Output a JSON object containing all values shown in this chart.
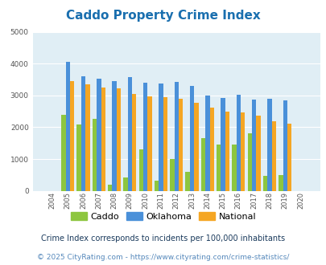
{
  "title": "Caddo Property Crime Index",
  "title_color": "#1a6faf",
  "years": [
    "2004",
    "2005",
    "2006",
    "2007",
    "2008",
    "2009",
    "2010",
    "2011",
    "2012",
    "2013",
    "2014",
    "2015",
    "2016",
    "2017",
    "2018",
    "2019",
    "2020"
  ],
  "caddo": [
    0,
    2400,
    2080,
    2270,
    200,
    420,
    1310,
    320,
    1000,
    600,
    1650,
    1450,
    1450,
    1800,
    480,
    490,
    0
  ],
  "oklahoma": [
    0,
    4050,
    3600,
    3530,
    3440,
    3570,
    3400,
    3370,
    3420,
    3290,
    3000,
    2920,
    3010,
    2880,
    2890,
    2850,
    0
  ],
  "national": [
    0,
    3450,
    3350,
    3260,
    3210,
    3040,
    2960,
    2940,
    2890,
    2760,
    2620,
    2500,
    2460,
    2360,
    2190,
    2120,
    0
  ],
  "caddo_color": "#8dc63f",
  "oklahoma_color": "#4a90d9",
  "national_color": "#f5a623",
  "plot_bg": "#e0eef5",
  "ylim": [
    0,
    5000
  ],
  "yticks": [
    0,
    1000,
    2000,
    3000,
    4000,
    5000
  ],
  "footnote1": "Crime Index corresponds to incidents per 100,000 inhabitants",
  "footnote2": "© 2025 CityRating.com - https://www.cityrating.com/crime-statistics/",
  "footnote1_color": "#1a3a5c",
  "footnote2_color": "#5588bb",
  "legend_labels": [
    "Caddo",
    "Oklahoma",
    "National"
  ]
}
